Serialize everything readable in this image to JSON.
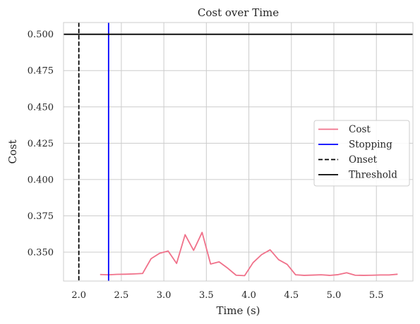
{
  "chart_data": {
    "type": "line",
    "title": "Cost over Time",
    "xlabel": "Time (s)",
    "ylabel": "Cost",
    "xlim": [
      1.82,
      5.93
    ],
    "ylim": [
      0.3301,
      0.5081
    ],
    "xticks": [
      2.0,
      2.5,
      3.0,
      3.5,
      4.0,
      4.5,
      5.0,
      5.5
    ],
    "xtick_labels": [
      "2.0",
      "2.5",
      "3.0",
      "3.5",
      "4.0",
      "4.5",
      "5.0",
      "5.5"
    ],
    "yticks": [
      0.35,
      0.375,
      0.4,
      0.425,
      0.45,
      0.475,
      0.5
    ],
    "ytick_labels": [
      "0.350",
      "0.375",
      "0.400",
      "0.425",
      "0.450",
      "0.475",
      "0.500"
    ],
    "grid": true,
    "legend_position": "center-right",
    "series": [
      {
        "name": "Cost",
        "color": "#f0718a",
        "x": [
          2.25,
          2.35,
          2.45,
          2.55,
          2.65,
          2.75,
          2.85,
          2.95,
          3.05,
          3.15,
          3.25,
          3.35,
          3.45,
          3.55,
          3.65,
          3.75,
          3.85,
          3.95,
          4.05,
          4.15,
          4.25,
          4.35,
          4.45,
          4.55,
          4.65,
          4.75,
          4.85,
          4.95,
          5.05,
          5.15,
          5.25,
          5.35,
          5.45,
          5.55,
          5.65,
          5.75
        ],
        "y": [
          0.3346,
          0.3344,
          0.3347,
          0.3348,
          0.335,
          0.3353,
          0.3455,
          0.3492,
          0.3508,
          0.3422,
          0.362,
          0.3512,
          0.3636,
          0.3418,
          0.3433,
          0.339,
          0.3341,
          0.3338,
          0.3428,
          0.3483,
          0.3516,
          0.3448,
          0.3416,
          0.3344,
          0.334,
          0.3342,
          0.3344,
          0.334,
          0.3345,
          0.3358,
          0.3341,
          0.334,
          0.3341,
          0.3343,
          0.3343,
          0.3348
        ]
      }
    ],
    "reference_lines": [
      {
        "name": "Stopping",
        "orientation": "vertical",
        "value": 2.35,
        "color": "#0000ff",
        "style": "solid"
      },
      {
        "name": "Onset",
        "orientation": "vertical",
        "value": 2.0,
        "color": "#000000",
        "style": "dashed"
      },
      {
        "name": "Threshold",
        "orientation": "horizontal",
        "value": 0.5,
        "color": "#000000",
        "style": "solid"
      }
    ]
  }
}
